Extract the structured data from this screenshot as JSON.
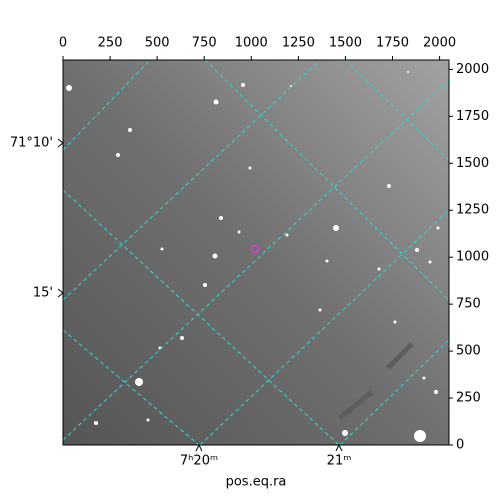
{
  "chart_data": {
    "type": "image",
    "xlabel": "pos.eq.ra",
    "xlim": [
      0,
      2050
    ],
    "xticks": [
      0,
      250,
      500,
      750,
      1000,
      1250,
      1500,
      1750,
      2000
    ],
    "ylim": [
      0,
      2050
    ],
    "yticks": [
      0,
      250,
      500,
      750,
      1000,
      1250,
      1500,
      1750,
      2000
    ],
    "ra_ticks": [
      "7ʰ20ᵐ",
      "21ᵐ"
    ],
    "dec_ticks": [
      "71°10'",
      "15'"
    ],
    "grid": true,
    "grid_color": "#2fd6d6",
    "marker_color": "#d63cd6"
  }
}
